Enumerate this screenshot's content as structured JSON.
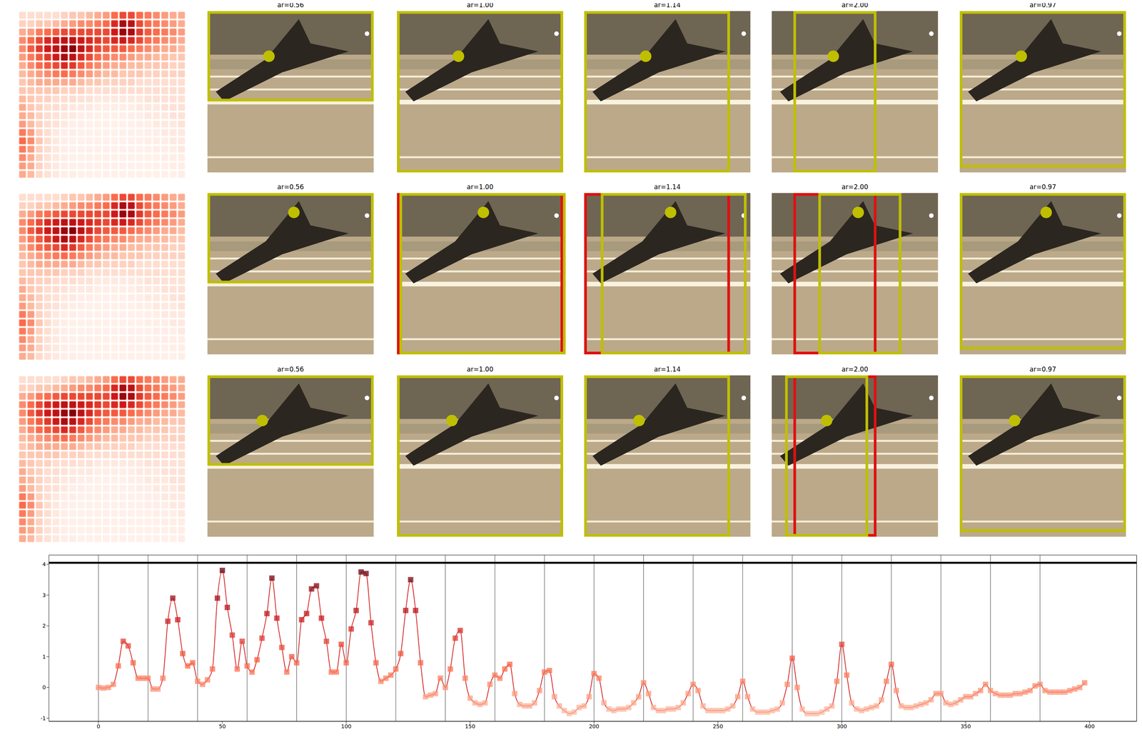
{
  "panels": {
    "heatmap": {
      "cells": [
        [
          0.1,
          0.1,
          0.1,
          0.1,
          0.1,
          0.15,
          0.2,
          0.2,
          0.25,
          0.3,
          0.35,
          0.5,
          0.6,
          0.6,
          0.5,
          0.45,
          0.4,
          0.35,
          0.3,
          0.3
        ],
        [
          0.15,
          0.15,
          0.2,
          0.2,
          0.25,
          0.3,
          0.35,
          0.4,
          0.4,
          0.45,
          0.5,
          0.7,
          0.85,
          0.8,
          0.6,
          0.5,
          0.45,
          0.4,
          0.35,
          0.3
        ],
        [
          0.3,
          0.35,
          0.45,
          0.5,
          0.55,
          0.6,
          0.6,
          0.6,
          0.6,
          0.6,
          0.6,
          0.75,
          0.9,
          0.85,
          0.65,
          0.55,
          0.5,
          0.45,
          0.4,
          0.35
        ],
        [
          0.4,
          0.5,
          0.6,
          0.7,
          0.75,
          0.8,
          0.8,
          0.75,
          0.7,
          0.65,
          0.6,
          0.7,
          0.75,
          0.7,
          0.6,
          0.5,
          0.45,
          0.4,
          0.35,
          0.3
        ],
        [
          0.4,
          0.55,
          0.65,
          0.75,
          0.8,
          0.9,
          0.95,
          0.8,
          0.7,
          0.6,
          0.55,
          0.55,
          0.55,
          0.5,
          0.45,
          0.4,
          0.35,
          0.3,
          0.3,
          0.25
        ],
        [
          0.35,
          0.45,
          0.55,
          0.65,
          0.75,
          0.85,
          0.8,
          0.7,
          0.6,
          0.5,
          0.45,
          0.4,
          0.4,
          0.35,
          0.3,
          0.3,
          0.25,
          0.25,
          0.2,
          0.2
        ],
        [
          0.3,
          0.4,
          0.5,
          0.55,
          0.6,
          0.7,
          0.65,
          0.55,
          0.45,
          0.4,
          0.35,
          0.3,
          0.3,
          0.25,
          0.25,
          0.2,
          0.2,
          0.2,
          0.15,
          0.15
        ],
        [
          0.25,
          0.3,
          0.35,
          0.4,
          0.45,
          0.5,
          0.45,
          0.4,
          0.35,
          0.3,
          0.25,
          0.25,
          0.2,
          0.2,
          0.2,
          0.15,
          0.15,
          0.15,
          0.15,
          0.15
        ],
        [
          0.2,
          0.25,
          0.3,
          0.3,
          0.3,
          0.3,
          0.3,
          0.25,
          0.2,
          0.2,
          0.15,
          0.15,
          0.15,
          0.15,
          0.1,
          0.1,
          0.1,
          0.1,
          0.1,
          0.1
        ],
        [
          0.2,
          0.2,
          0.2,
          0.2,
          0.2,
          0.15,
          0.15,
          0.15,
          0.1,
          0.1,
          0.1,
          0.1,
          0.1,
          0.1,
          0.1,
          0.1,
          0.1,
          0.1,
          0.1,
          0.1
        ],
        [
          0.25,
          0.2,
          0.15,
          0.15,
          0.1,
          0.1,
          0.1,
          0.08,
          0.08,
          0.05,
          0.05,
          0.05,
          0.05,
          0.05,
          0.05,
          0.08,
          0.08,
          0.08,
          0.08,
          0.08
        ],
        [
          0.3,
          0.2,
          0.15,
          0.1,
          0.1,
          0.08,
          0.05,
          0.05,
          0.05,
          0.03,
          0.03,
          0.03,
          0.03,
          0.03,
          0.05,
          0.05,
          0.05,
          0.08,
          0.08,
          0.08
        ],
        [
          0.3,
          0.25,
          0.15,
          0.1,
          0.08,
          0.05,
          0.05,
          0.03,
          0.03,
          0.02,
          0.02,
          0.02,
          0.02,
          0.03,
          0.03,
          0.05,
          0.05,
          0.05,
          0.08,
          0.08
        ],
        [
          0.35,
          0.25,
          0.15,
          0.1,
          0.08,
          0.05,
          0.03,
          0.03,
          0.02,
          0.02,
          0.02,
          0.02,
          0.02,
          0.02,
          0.03,
          0.03,
          0.05,
          0.05,
          0.05,
          0.08
        ],
        [
          0.45,
          0.35,
          0.15,
          0.1,
          0.05,
          0.03,
          0.03,
          0.02,
          0.02,
          0.02,
          0.02,
          0.02,
          0.02,
          0.02,
          0.02,
          0.03,
          0.03,
          0.05,
          0.05,
          0.05
        ],
        [
          0.5,
          0.4,
          0.2,
          0.1,
          0.05,
          0.03,
          0.02,
          0.02,
          0.02,
          0.02,
          0.02,
          0.02,
          0.02,
          0.02,
          0.02,
          0.03,
          0.03,
          0.03,
          0.05,
          0.05
        ],
        [
          0.45,
          0.35,
          0.15,
          0.1,
          0.05,
          0.03,
          0.02,
          0.02,
          0.02,
          0.02,
          0.02,
          0.02,
          0.02,
          0.02,
          0.02,
          0.02,
          0.03,
          0.03,
          0.03,
          0.05
        ],
        [
          0.4,
          0.3,
          0.15,
          0.08,
          0.05,
          0.03,
          0.02,
          0.02,
          0.02,
          0.02,
          0.02,
          0.02,
          0.02,
          0.02,
          0.02,
          0.02,
          0.02,
          0.03,
          0.03,
          0.03
        ],
        [
          0.35,
          0.3,
          0.15,
          0.08,
          0.05,
          0.03,
          0.02,
          0.02,
          0.02,
          0.02,
          0.02,
          0.02,
          0.02,
          0.02,
          0.02,
          0.02,
          0.02,
          0.02,
          0.03,
          0.03
        ],
        [
          0.3,
          0.25,
          0.12,
          0.08,
          0.05,
          0.03,
          0.03,
          0.02,
          0.02,
          0.02,
          0.02,
          0.02,
          0.02,
          0.02,
          0.02,
          0.02,
          0.02,
          0.02,
          0.02,
          0.03
        ]
      ]
    },
    "rows": [
      {
        "panels": [
          {
            "title": "ar=0.56",
            "ar": 0.56
          },
          {
            "title": "ar=1.00",
            "ar": 1.0
          },
          {
            "title": "ar=1.14",
            "ar": 1.14
          },
          {
            "title": "ar=2.00",
            "ar": 2.0
          },
          {
            "title": "ar=0.97",
            "ar": 0.97
          }
        ]
      },
      {
        "panels": [
          {
            "title": "ar=0.56",
            "ar": 0.56
          },
          {
            "title": "ar=1.00",
            "ar": 1.0
          },
          {
            "title": "ar=1.14",
            "ar": 1.14
          },
          {
            "title": "ar=2.00",
            "ar": 2.0
          },
          {
            "title": "ar=0.97",
            "ar": 0.97
          }
        ]
      },
      {
        "panels": [
          {
            "title": "ar=0.56",
            "ar": 0.56
          },
          {
            "title": "ar=1.00",
            "ar": 1.0
          },
          {
            "title": "ar=1.14",
            "ar": 1.14
          },
          {
            "title": "ar=2.00",
            "ar": 2.0
          },
          {
            "title": "ar=0.97",
            "ar": 0.97
          }
        ]
      }
    ]
  },
  "chart_data": {
    "type": "line",
    "color": "#d62728",
    "marker": "square",
    "x": [
      0,
      2,
      4,
      6,
      8,
      10,
      12,
      14,
      16,
      18,
      20,
      22,
      24,
      26,
      28,
      30,
      32,
      34,
      36,
      38,
      40,
      42,
      44,
      46,
      48,
      50,
      52,
      54,
      56,
      58,
      60,
      62,
      64,
      66,
      68,
      70,
      72,
      74,
      76,
      78,
      80,
      82,
      84,
      86,
      88,
      90,
      92,
      94,
      96,
      98,
      100,
      102,
      104,
      106,
      108,
      110,
      112,
      114,
      116,
      118,
      120,
      122,
      124,
      126,
      128,
      130,
      132,
      134,
      136,
      138,
      140,
      142,
      144,
      146,
      148,
      150,
      152,
      154,
      156,
      158,
      160,
      162,
      164,
      166,
      168,
      170,
      172,
      174,
      176,
      178,
      180,
      182,
      184,
      186,
      188,
      190,
      192,
      194,
      196,
      198,
      200,
      202,
      204,
      206,
      208,
      210,
      212,
      214,
      216,
      218,
      220,
      222,
      224,
      226,
      228,
      230,
      232,
      234,
      236,
      238,
      240,
      242,
      244,
      246,
      248,
      250,
      252,
      254,
      256,
      258,
      260,
      262,
      264,
      266,
      268,
      270,
      272,
      274,
      276,
      278,
      280,
      282,
      284,
      286,
      288,
      290,
      292,
      294,
      296,
      298,
      300,
      302,
      304,
      306,
      308,
      310,
      312,
      314,
      316,
      318,
      320,
      322,
      324,
      326,
      328,
      330,
      332,
      334,
      336,
      338,
      340,
      342,
      344,
      346,
      348,
      350,
      352,
      354,
      356,
      358,
      360,
      362,
      364,
      366,
      368,
      370,
      372,
      374,
      376,
      378,
      380,
      382,
      384,
      386,
      388,
      390,
      392,
      394,
      396,
      398
    ],
    "values": [
      0,
      -0.02,
      0,
      0.1,
      0.7,
      1.5,
      1.35,
      0.8,
      0.3,
      0.3,
      0.3,
      -0.05,
      -0.05,
      0.3,
      2.15,
      2.9,
      2.2,
      1.1,
      0.7,
      0.8,
      0.2,
      0.1,
      0.25,
      0.6,
      2.9,
      3.8,
      2.6,
      1.7,
      0.6,
      1.5,
      0.7,
      0.5,
      0.9,
      1.6,
      2.4,
      3.55,
      2.25,
      1.3,
      0.5,
      1.0,
      0.8,
      2.2,
      2.4,
      3.2,
      3.3,
      2.25,
      1.5,
      0.5,
      0.5,
      1.4,
      0.8,
      1.9,
      2.5,
      3.75,
      3.7,
      2.1,
      0.8,
      0.2,
      0.3,
      0.4,
      0.6,
      1.1,
      2.5,
      3.5,
      2.5,
      0.8,
      -0.3,
      -0.25,
      -0.2,
      0.3,
      0,
      0.6,
      1.6,
      1.85,
      0.3,
      -0.35,
      -0.5,
      -0.55,
      -0.5,
      0.1,
      0.4,
      0.3,
      0.6,
      0.75,
      -0.2,
      -0.55,
      -0.6,
      -0.6,
      -0.5,
      -0.1,
      0.5,
      0.55,
      -0.3,
      -0.6,
      -0.75,
      -0.85,
      -0.8,
      -0.65,
      -0.6,
      -0.3,
      0.45,
      0.3,
      -0.5,
      -0.7,
      -0.75,
      -0.7,
      -0.7,
      -0.65,
      -0.5,
      -0.3,
      0.15,
      -0.2,
      -0.65,
      -0.75,
      -0.75,
      -0.7,
      -0.7,
      -0.65,
      -0.5,
      -0.2,
      0.1,
      -0.1,
      -0.6,
      -0.75,
      -0.75,
      -0.75,
      -0.75,
      -0.7,
      -0.6,
      -0.3,
      0.2,
      -0.3,
      -0.7,
      -0.8,
      -0.8,
      -0.8,
      -0.75,
      -0.7,
      -0.5,
      0.1,
      0.95,
      0,
      -0.7,
      -0.85,
      -0.85,
      -0.85,
      -0.8,
      -0.7,
      -0.6,
      0.2,
      1.4,
      0.4,
      -0.5,
      -0.7,
      -0.75,
      -0.7,
      -0.65,
      -0.6,
      -0.4,
      0.2,
      0.75,
      -0.1,
      -0.6,
      -0.65,
      -0.65,
      -0.6,
      -0.55,
      -0.5,
      -0.4,
      -0.2,
      -0.2,
      -0.5,
      -0.55,
      -0.5,
      -0.4,
      -0.3,
      -0.3,
      -0.2,
      -0.1,
      0.1,
      -0.1,
      -0.2,
      -0.25,
      -0.25,
      -0.25,
      -0.2,
      -0.2,
      -0.15,
      -0.1,
      0.05,
      0.1,
      -0.1,
      -0.15,
      -0.15,
      -0.15,
      -0.15,
      -0.1,
      -0.05,
      0,
      0.15
    ],
    "xlim": [
      -20,
      419
    ],
    "ylim": [
      -1.1,
      4.3
    ],
    "xticks": [
      0,
      50,
      100,
      150,
      200,
      250,
      300,
      350,
      400
    ],
    "yticks": [
      -1,
      0,
      1,
      2,
      3,
      4
    ],
    "reference_lines": {
      "x": [
        0,
        20,
        40,
        60,
        80,
        100,
        120,
        140,
        160,
        180,
        200,
        220,
        240,
        260,
        280,
        300,
        320,
        340,
        360,
        380
      ],
      "y": [
        4.05
      ]
    }
  }
}
